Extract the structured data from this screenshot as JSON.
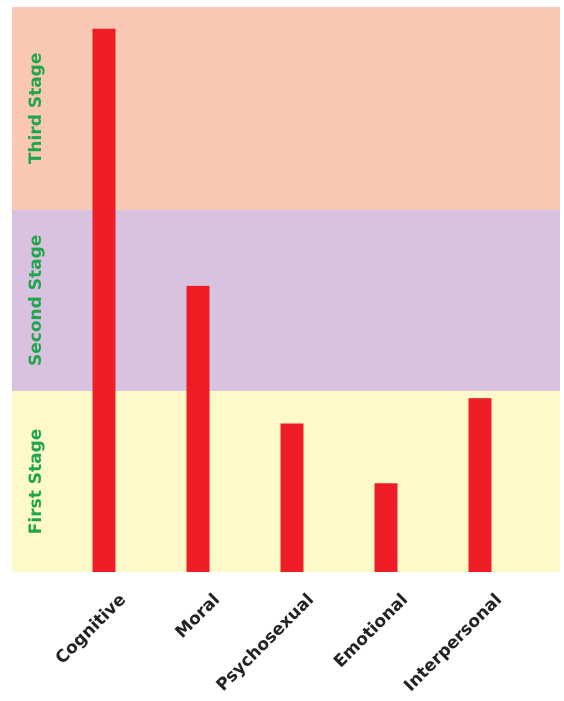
{
  "chart_data": {
    "type": "bar",
    "title": "",
    "xlabel": "",
    "ylabel": "",
    "categories": [
      "Cognitive",
      "Moral",
      "Psychosexual",
      "Emotional",
      "Interpersonal"
    ],
    "values": [
      3.0,
      1.58,
      0.82,
      0.49,
      0.96
    ],
    "ylim": [
      0,
      3.12
    ],
    "grid": false,
    "legend": "none",
    "bar_color": "#ee1c25",
    "bands": [
      {
        "label": "First Stage",
        "from": 0,
        "to": 1.0,
        "color": "#fdf9c9"
      },
      {
        "label": "Second Stage",
        "from": 1.0,
        "to": 2.0,
        "color": "#d9c2e0"
      },
      {
        "label": "Third Stage",
        "from": 2.0,
        "to": 3.12,
        "color": "#f9c8b3"
      }
    ],
    "band_label_color": "#1fa64a"
  }
}
